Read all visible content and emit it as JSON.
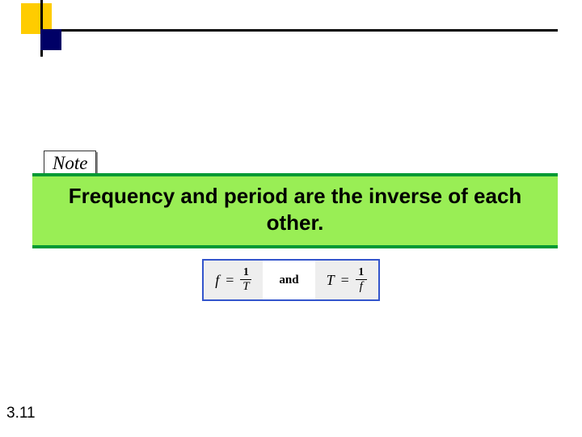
{
  "decoration": {
    "yellow_color": "#ffcc00",
    "navy_color": "#000066",
    "line_color": "#000000"
  },
  "note": {
    "label": "Note",
    "border_color": "#333333",
    "shadow_color": "#888888",
    "font_style": "italic",
    "font_size_pt": 17
  },
  "band": {
    "statement": "Frequency and period are the inverse of each other.",
    "background_color": "#99ee55",
    "border_color": "#009933",
    "font_size_pt": 20,
    "font_weight": "bold"
  },
  "formulas": {
    "border_color": "#3355cc",
    "cell_background": "#eeeeee",
    "left": {
      "lhs": "f",
      "equals": "=",
      "numerator": "1",
      "denominator": "T"
    },
    "connector": "and",
    "right": {
      "lhs": "T",
      "equals": "=",
      "numerator": "1",
      "denominator": "f"
    }
  },
  "page_number": "3.11"
}
